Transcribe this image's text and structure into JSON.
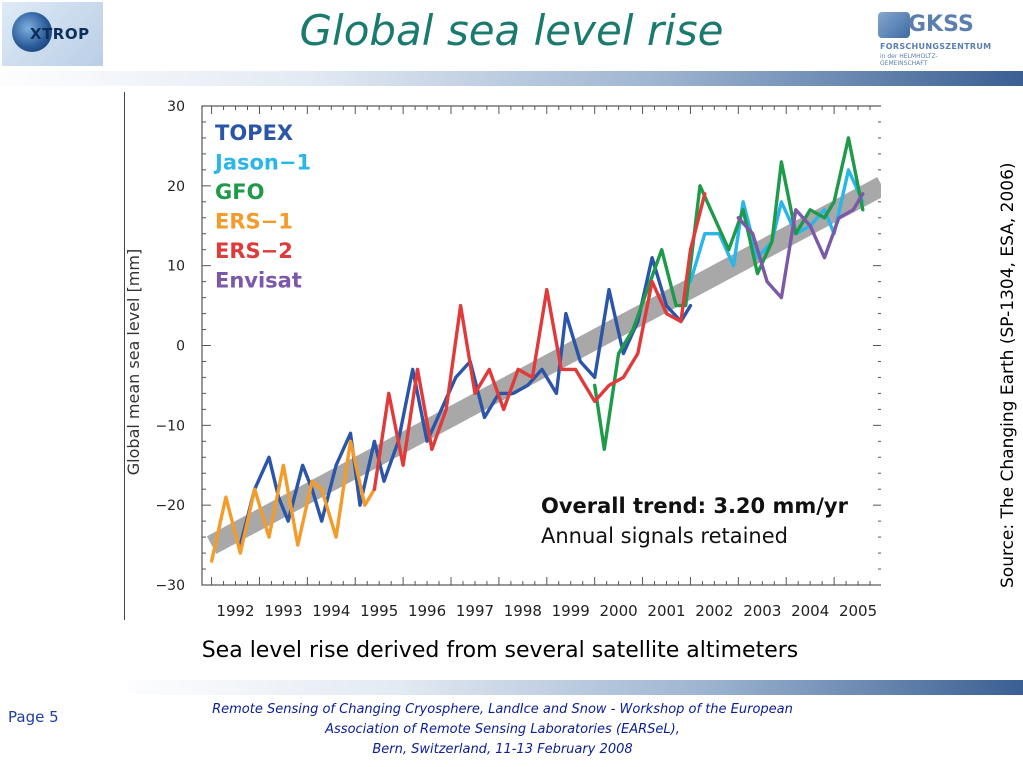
{
  "header": {
    "title": "Global sea level rise",
    "logo_left_text": "XTROP",
    "logo_right": {
      "name": "GKSS",
      "sub": "FORSCHUNGSZENTRUM",
      "sub2": "in der HELMHOLTZ-GEMEINSCHAFT"
    }
  },
  "caption": "Sea level rise derived from several satellite altimeters",
  "source": "Source: The Changing Earth (SP-1304, ESA, 2006)",
  "footer": {
    "page": "Page 5",
    "line1": "Remote Sensing of Changing Cryosphere, LandIce and Snow - Workshop of the European",
    "line2": "Association of Remote Sensing Laboratories (EARSeL),",
    "line3": "Bern, Switzerland, 11-13 February 2008"
  },
  "colors": {
    "title": "#1a7a6e",
    "footer": "#0b1e94",
    "trend_band": "#a8a8a8"
  },
  "chart_data": {
    "type": "line",
    "title": "",
    "xlabel": "",
    "ylabel": "Global mean sea level [mm]",
    "xlim": [
      1991.8,
      2006.0
    ],
    "ylim": [
      -30,
      30
    ],
    "x_ticks": [
      "1992",
      "1993",
      "1994",
      "1995",
      "1996",
      "1997",
      "1998",
      "1999",
      "2000",
      "2001",
      "2002",
      "2003",
      "2004",
      "2005"
    ],
    "y_ticks": [
      "30",
      "20",
      "10",
      "0",
      "−10",
      "−20",
      "−30"
    ],
    "annotation_line1": "Overall trend: 3.20 mm/yr",
    "annotation_line2": "Annual signals retained",
    "trend": {
      "rate_mm_per_yr": 3.2,
      "start": [
        1992.0,
        -25.0
      ],
      "end": [
        2006.0,
        20.0
      ]
    },
    "series": [
      {
        "name": "TOPEX",
        "color": "#2b55a8",
        "points": [
          [
            1992.6,
            -25
          ],
          [
            1992.9,
            -18
          ],
          [
            1993.2,
            -14
          ],
          [
            1993.4,
            -19
          ],
          [
            1993.6,
            -22
          ],
          [
            1993.9,
            -15
          ],
          [
            1994.1,
            -18
          ],
          [
            1994.3,
            -22
          ],
          [
            1994.6,
            -15
          ],
          [
            1994.9,
            -11
          ],
          [
            1995.1,
            -20
          ],
          [
            1995.4,
            -12
          ],
          [
            1995.6,
            -17
          ],
          [
            1995.9,
            -12
          ],
          [
            1996.2,
            -3
          ],
          [
            1996.5,
            -12
          ],
          [
            1996.8,
            -8
          ],
          [
            1997.1,
            -4
          ],
          [
            1997.4,
            -2
          ],
          [
            1997.7,
            -9
          ],
          [
            1998.0,
            -6
          ],
          [
            1998.3,
            -6
          ],
          [
            1998.6,
            -5
          ],
          [
            1998.9,
            -3
          ],
          [
            1999.2,
            -6
          ],
          [
            1999.4,
            4
          ],
          [
            1999.7,
            -2
          ],
          [
            2000.0,
            -4
          ],
          [
            2000.3,
            7
          ],
          [
            2000.6,
            -1
          ],
          [
            2000.9,
            3
          ],
          [
            2001.2,
            11
          ],
          [
            2001.5,
            5
          ],
          [
            2001.8,
            3
          ],
          [
            2002.0,
            5
          ]
        ]
      },
      {
        "name": "Jason−1",
        "color": "#29b6e8",
        "points": [
          [
            2002.0,
            8
          ],
          [
            2002.3,
            14
          ],
          [
            2002.6,
            14
          ],
          [
            2002.9,
            10
          ],
          [
            2003.1,
            18
          ],
          [
            2003.4,
            11
          ],
          [
            2003.7,
            13
          ],
          [
            2003.9,
            18
          ],
          [
            2004.2,
            14
          ],
          [
            2004.5,
            15
          ],
          [
            2004.8,
            17
          ],
          [
            2005.0,
            14
          ],
          [
            2005.3,
            22
          ],
          [
            2005.6,
            18
          ]
        ]
      },
      {
        "name": "GFO",
        "color": "#1e9a4a",
        "points": [
          [
            2000.0,
            -5
          ],
          [
            2000.2,
            -13
          ],
          [
            2000.5,
            -1
          ],
          [
            2000.8,
            2
          ],
          [
            2001.1,
            7
          ],
          [
            2001.4,
            12
          ],
          [
            2001.7,
            5
          ],
          [
            2001.9,
            5
          ],
          [
            2002.2,
            20
          ],
          [
            2002.5,
            16
          ],
          [
            2002.8,
            12
          ],
          [
            2003.1,
            17
          ],
          [
            2003.4,
            9
          ],
          [
            2003.7,
            13
          ],
          [
            2003.9,
            23
          ],
          [
            2004.2,
            14
          ],
          [
            2004.5,
            17
          ],
          [
            2004.8,
            16
          ],
          [
            2005.0,
            18
          ],
          [
            2005.3,
            26
          ],
          [
            2005.6,
            17
          ]
        ]
      },
      {
        "name": "ERS−1",
        "color": "#f39c2b",
        "points": [
          [
            1992.0,
            -27
          ],
          [
            1992.3,
            -19
          ],
          [
            1992.6,
            -26
          ],
          [
            1992.9,
            -18
          ],
          [
            1993.2,
            -24
          ],
          [
            1993.5,
            -15
          ],
          [
            1993.8,
            -25
          ],
          [
            1994.1,
            -17
          ],
          [
            1994.3,
            -18
          ],
          [
            1994.6,
            -24
          ],
          [
            1994.9,
            -12
          ],
          [
            1995.2,
            -20
          ],
          [
            1995.4,
            -18
          ]
        ]
      },
      {
        "name": "ERS−2",
        "color": "#e03a3a",
        "points": [
          [
            1995.4,
            -18
          ],
          [
            1995.7,
            -6
          ],
          [
            1996.0,
            -15
          ],
          [
            1996.3,
            -3
          ],
          [
            1996.6,
            -13
          ],
          [
            1996.9,
            -8
          ],
          [
            1997.2,
            5
          ],
          [
            1997.5,
            -6
          ],
          [
            1997.8,
            -3
          ],
          [
            1998.1,
            -8
          ],
          [
            1998.4,
            -3
          ],
          [
            1998.7,
            -4
          ],
          [
            1999.0,
            7
          ],
          [
            1999.3,
            -3
          ],
          [
            1999.6,
            -3
          ],
          [
            2000.0,
            -7
          ],
          [
            2000.3,
            -5
          ],
          [
            2000.6,
            -4
          ],
          [
            2000.9,
            -1
          ],
          [
            2001.2,
            8
          ],
          [
            2001.5,
            4
          ],
          [
            2001.8,
            3
          ],
          [
            2002.0,
            12
          ],
          [
            2002.3,
            19
          ]
        ]
      },
      {
        "name": "Envisat",
        "color": "#7b58a8",
        "points": [
          [
            2003.0,
            16
          ],
          [
            2003.3,
            14
          ],
          [
            2003.6,
            8
          ],
          [
            2003.9,
            6
          ],
          [
            2004.2,
            17
          ],
          [
            2004.5,
            15
          ],
          [
            2004.8,
            11
          ],
          [
            2005.1,
            16
          ],
          [
            2005.4,
            17
          ],
          [
            2005.6,
            19
          ]
        ]
      }
    ]
  }
}
